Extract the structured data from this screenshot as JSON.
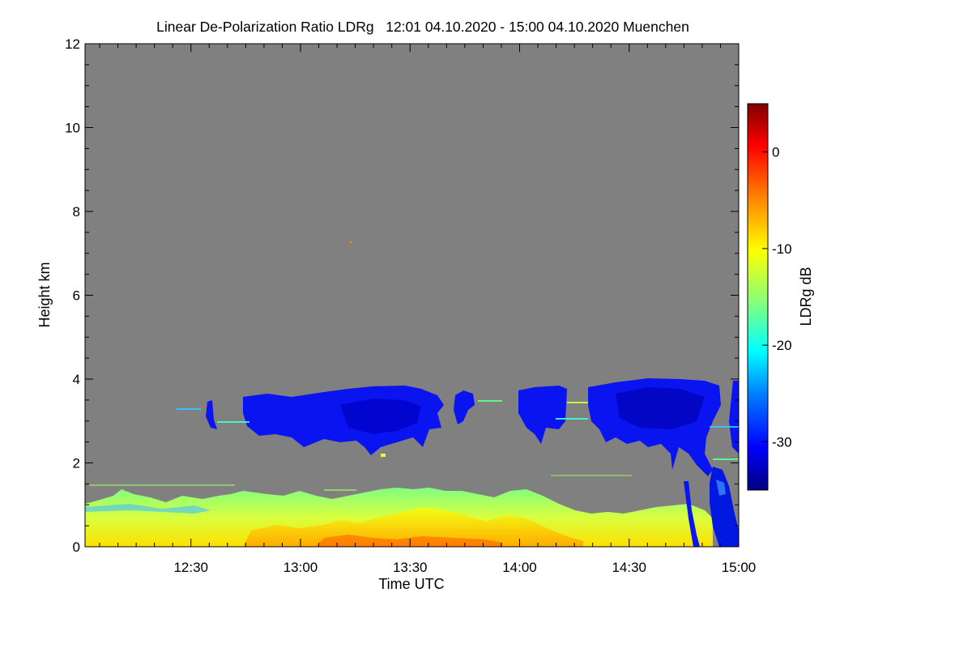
{
  "chart_data": {
    "type": "heatmap",
    "title": "Linear De-Polarization Ratio LDRg   12:01 04.10.2020 - 15:00 04.10.2020 Muenchen",
    "xlabel": "Time UTC",
    "ylabel": "Height km",
    "colorbar_label": "LDRg dB",
    "xlim": [
      "12:01",
      "15:00"
    ],
    "ylim": [
      0,
      12
    ],
    "x_ticks": [
      "12:30",
      "13:00",
      "13:30",
      "14:00",
      "14:30",
      "15:00"
    ],
    "x_tick_minutes": [
      30,
      60,
      90,
      120,
      150,
      180
    ],
    "y_ticks": [
      "0",
      "2",
      "4",
      "6",
      "8",
      "10",
      "12"
    ],
    "y_tick_values": [
      0,
      2,
      4,
      6,
      8,
      10,
      12
    ],
    "colorbar_range": [
      -35,
      5
    ],
    "colorbar_ticks": [
      "0",
      "-10",
      "-20",
      "-30"
    ],
    "colorbar_tick_values": [
      0,
      -10,
      -20,
      -30
    ],
    "no_signal_color": "#808080",
    "colormap": [
      "#000080",
      "#0000ff",
      "#0080ff",
      "#00ffff",
      "#80ff80",
      "#ffff00",
      "#ff8000",
      "#ff0000",
      "#800000"
    ],
    "features": [
      {
        "name": "boundary layer",
        "time_start_min": 0,
        "time_end_min": 170,
        "height_km": [
          0,
          1.4
        ],
        "ldr_db": -12
      },
      {
        "name": "cloud layer",
        "time_start_min": 33,
        "time_end_min": 98,
        "height_km": [
          2.3,
          3.9
        ],
        "ldr_db": -33
      },
      {
        "name": "cloud layer",
        "time_start_min": 116,
        "time_end_min": 127,
        "height_km": [
          2.6,
          3.8
        ],
        "ldr_db": -33
      },
      {
        "name": "cloud layer",
        "time_start_min": 140,
        "time_end_min": 175,
        "height_km": [
          2.3,
          4.0
        ],
        "ldr_db": -33
      },
      {
        "name": "precipitation fall streak",
        "time_start_min": 172,
        "time_end_min": 179,
        "height_km": [
          0,
          1.8
        ],
        "ldr_db": -30
      }
    ]
  }
}
